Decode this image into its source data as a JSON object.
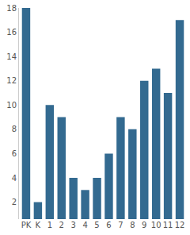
{
  "chart_data": {
    "type": "bar",
    "categories": [
      "PK",
      "K",
      "1",
      "2",
      "3",
      "4",
      "5",
      "6",
      "7",
      "8",
      "9",
      "10",
      "11",
      "12"
    ],
    "values": [
      18,
      2,
      10,
      9,
      4,
      3,
      4,
      6,
      9,
      8,
      12,
      13,
      11,
      17
    ],
    "color": "#336a90",
    "ylim": [
      0.6,
      18
    ],
    "yticks": [
      2,
      4,
      6,
      8,
      10,
      12,
      14,
      16,
      18
    ],
    "grid": false
  }
}
